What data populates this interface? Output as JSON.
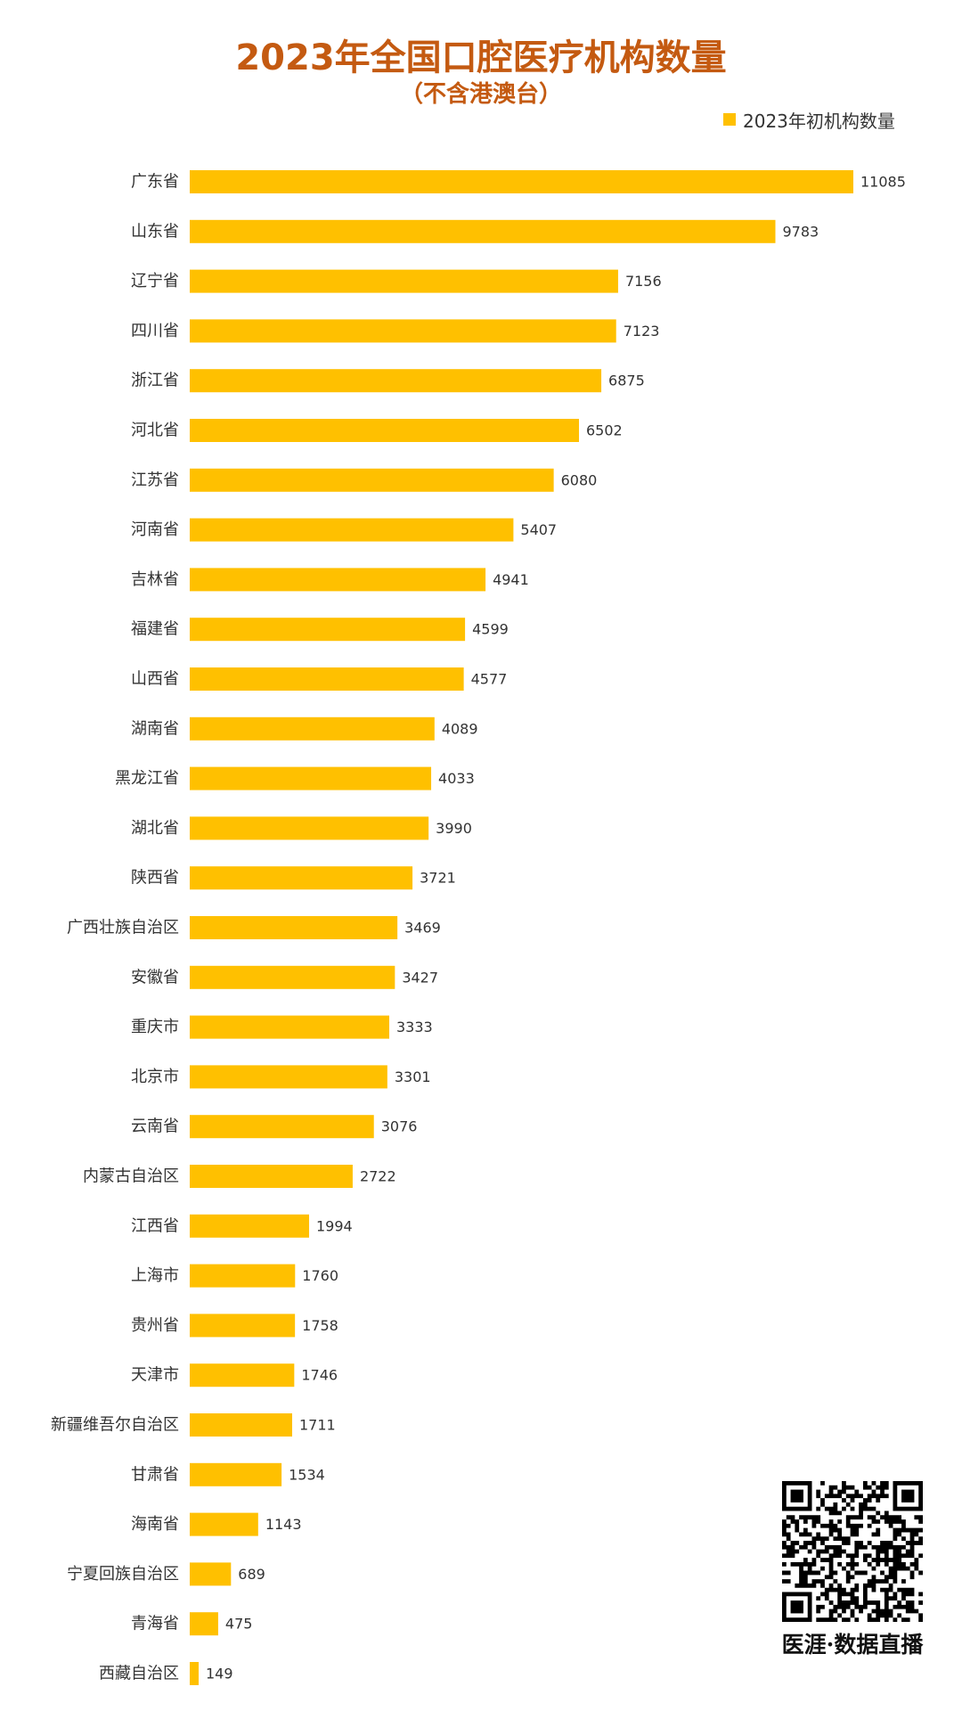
{
  "colors": {
    "title": "#C45A11",
    "bar": "#FFC000",
    "text": "#333333",
    "qr": "#000000"
  },
  "icons": {
    "qr": "qr-code-icon"
  },
  "chart_data": {
    "type": "bar",
    "orientation": "horizontal",
    "title": "2023年全国口腔医疗机构数量",
    "subtitle": "（不含港澳台）",
    "xlabel": "",
    "ylabel": "",
    "grid": false,
    "legend_position": "top-right",
    "data_labels": true,
    "categories": [
      "广东省",
      "山东省",
      "辽宁省",
      "四川省",
      "浙江省",
      "河北省",
      "江苏省",
      "河南省",
      "吉林省",
      "福建省",
      "山西省",
      "湖南省",
      "黑龙江省",
      "湖北省",
      "陕西省",
      "广西壮族自治区",
      "安徽省",
      "重庆市",
      "北京市",
      "云南省",
      "内蒙古自治区",
      "江西省",
      "上海市",
      "贵州省",
      "天津市",
      "新疆维吾尔自治区",
      "甘肃省",
      "海南省",
      "宁夏回族自治区",
      "青海省",
      "西藏自治区"
    ],
    "series": [
      {
        "name": "2023年初机构数量",
        "values": [
          11085,
          9783,
          7156,
          7123,
          6875,
          6502,
          6080,
          5407,
          4941,
          4599,
          4577,
          4089,
          4033,
          3990,
          3721,
          3469,
          3427,
          3333,
          3301,
          3076,
          2722,
          1994,
          1760,
          1758,
          1746,
          1711,
          1534,
          1143,
          689,
          475,
          149
        ]
      }
    ]
  },
  "watermark": {
    "brand": "医涯·数据直播"
  }
}
